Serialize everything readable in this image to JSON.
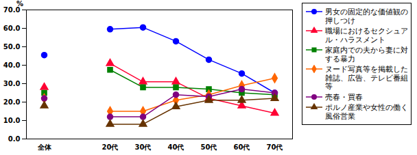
{
  "chart_data": {
    "type": "line",
    "y_label": "%",
    "categories": [
      "全体",
      null,
      "20代",
      "30代",
      "40代",
      "50代",
      "60代",
      "70代"
    ],
    "ylim": [
      0,
      70
    ],
    "yticks": [
      {
        "value": 0,
        "label": "0.0"
      },
      {
        "value": 10,
        "label": "10.0"
      },
      {
        "value": 20,
        "label": "20.0"
      },
      {
        "value": 30,
        "label": "30.0"
      },
      {
        "value": 40,
        "label": "40.0"
      },
      {
        "value": 50,
        "label": "50.0"
      },
      {
        "value": 60,
        "label": "60.0"
      },
      {
        "value": 70,
        "label": "70.0"
      }
    ],
    "grid": false,
    "legend": "right",
    "series": [
      {
        "name": "男女の固定的な価値観の押しつけ",
        "color": "#0000ff",
        "marker": "circle",
        "values": [
          45.5,
          null,
          59.5,
          60.5,
          53,
          43,
          35.5,
          25
        ]
      },
      {
        "name": "職場におけるセクシュアル・ハラスメント",
        "color": "#ff0033",
        "marker": "triangle",
        "values": [
          28,
          null,
          41,
          31,
          31,
          22,
          18,
          14
        ]
      },
      {
        "name": "家庭内での夫から妻に対する暴力",
        "color": "#008000",
        "marker": "square",
        "values": [
          25,
          null,
          37.5,
          28,
          28,
          27,
          25,
          24
        ]
      },
      {
        "name": "ヌード写真等を掲載した雑誌、広告、テレビ番組等",
        "color": "#ff6600",
        "marker": "diamond",
        "values": [
          22,
          null,
          15,
          15,
          21,
          24,
          29,
          33
        ]
      },
      {
        "name": "売春・買春",
        "color": "#800080",
        "marker": "circle",
        "values": [
          22,
          null,
          12,
          12,
          24,
          23,
          27,
          25
        ]
      },
      {
        "name": "ポルノ産業や女性の働く風俗営業",
        "color": "#663300",
        "marker": "triangle",
        "values": [
          18,
          null,
          8,
          8,
          17.5,
          21,
          21,
          22
        ]
      }
    ]
  }
}
